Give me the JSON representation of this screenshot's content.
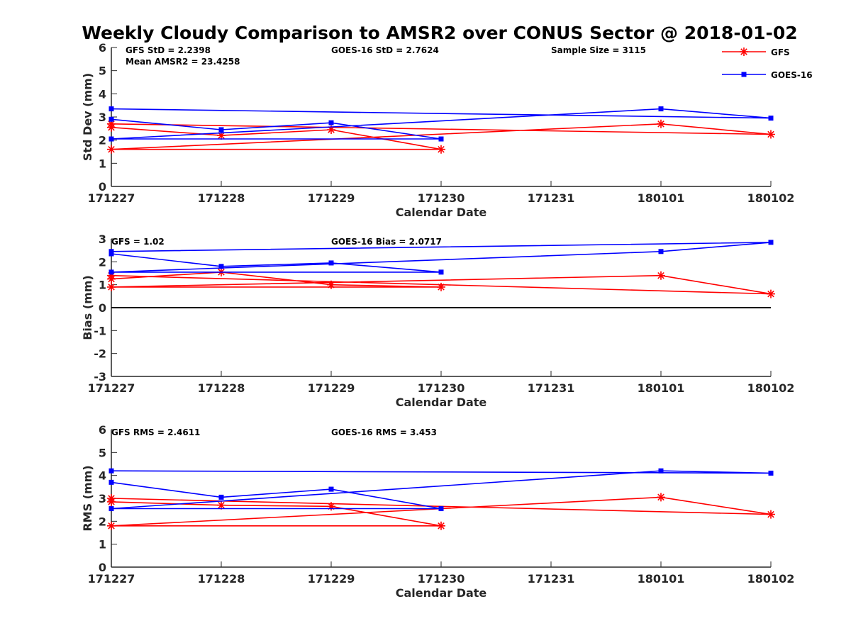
{
  "title": "Weekly Cloudy Comparison to AMSR2 over CONUS Sector @ 2018-01-02",
  "legend": {
    "placement": "top-right",
    "entries": [
      "GFS",
      "GOES-16"
    ]
  },
  "colors": {
    "GFS": "#ff0000",
    "GOES-16": "#0000ff",
    "zero_line": "#000000"
  },
  "chart_data": [
    {
      "type": "line",
      "title": "",
      "xlabel": "Calendar Date",
      "ylabel": "Std Dev (mm)",
      "x_ticks": [
        "171227",
        "171228",
        "171229",
        "171230",
        "171231",
        "180101",
        "180102"
      ],
      "ylim": [
        0,
        6
      ],
      "y_ticks": [
        "0",
        "1",
        "2",
        "3",
        "4",
        "5",
        "6"
      ],
      "annotations": [
        "GFS StD = 2.2398",
        "Mean AMSR2 = 23.4258",
        "GOES-16 StD = 2.7624",
        "Sample Size = 3115"
      ],
      "series": [
        {
          "name": "GFS",
          "marker": "asterisk",
          "x": [
            "171227",
            "171228",
            "171229",
            "171230",
            "171227",
            "180101",
            "180102",
            "171227"
          ],
          "y": [
            2.55,
            2.2,
            2.45,
            1.6,
            1.6,
            2.7,
            2.25,
            2.7
          ]
        },
        {
          "name": "GOES-16",
          "marker": "square",
          "x": [
            "171227",
            "171228",
            "171229",
            "171230",
            "171227",
            "180101",
            "180102",
            "171227"
          ],
          "y": [
            2.9,
            2.45,
            2.75,
            2.05,
            2.05,
            3.35,
            2.95,
            3.35
          ]
        }
      ]
    },
    {
      "type": "line",
      "title": "",
      "xlabel": "Calendar Date",
      "ylabel": "Bias (mm)",
      "x_ticks": [
        "171227",
        "171228",
        "171229",
        "171230",
        "171231",
        "180101",
        "180102"
      ],
      "ylim": [
        -3,
        3
      ],
      "y_ticks": [
        "-3",
        "-2",
        "-1",
        "0",
        "1",
        "2",
        "3"
      ],
      "zero_line": true,
      "annotations": [
        "GFS = 1.02",
        "GOES-16 Bias  = 2.0717"
      ],
      "series": [
        {
          "name": "GFS",
          "marker": "asterisk",
          "x": [
            "171227",
            "171228",
            "171229",
            "171230",
            "171227",
            "180101",
            "180102",
            "171227"
          ],
          "y": [
            1.25,
            1.55,
            1.0,
            0.9,
            0.9,
            1.4,
            0.6,
            1.4
          ]
        },
        {
          "name": "GOES-16",
          "marker": "square",
          "x": [
            "171227",
            "171228",
            "171229",
            "171230",
            "171227",
            "180101",
            "180102",
            "171227"
          ],
          "y": [
            2.35,
            1.8,
            1.95,
            1.55,
            1.55,
            2.45,
            2.85,
            2.45
          ]
        }
      ]
    },
    {
      "type": "line",
      "title": "",
      "xlabel": "Calendar Date",
      "ylabel": "RMS (mm)",
      "x_ticks": [
        "171227",
        "171228",
        "171229",
        "171230",
        "171231",
        "180101",
        "180102"
      ],
      "ylim": [
        0,
        6
      ],
      "y_ticks": [
        "0",
        "1",
        "2",
        "3",
        "4",
        "5",
        "6"
      ],
      "annotations": [
        "GFS RMS = 2.4611",
        "GOES-16 RMS = 3.453"
      ],
      "series": [
        {
          "name": "GFS",
          "marker": "asterisk",
          "x": [
            "171227",
            "171228",
            "171229",
            "171230",
            "171227",
            "180101",
            "180102",
            "171227"
          ],
          "y": [
            2.85,
            2.7,
            2.65,
            1.8,
            1.8,
            3.05,
            2.3,
            3.0
          ]
        },
        {
          "name": "GOES-16",
          "marker": "square",
          "x": [
            "171227",
            "171228",
            "171229",
            "171230",
            "171227",
            "180101",
            "180102",
            "171227"
          ],
          "y": [
            3.7,
            3.05,
            3.4,
            2.55,
            2.55,
            4.2,
            4.1,
            4.2
          ]
        }
      ]
    }
  ]
}
